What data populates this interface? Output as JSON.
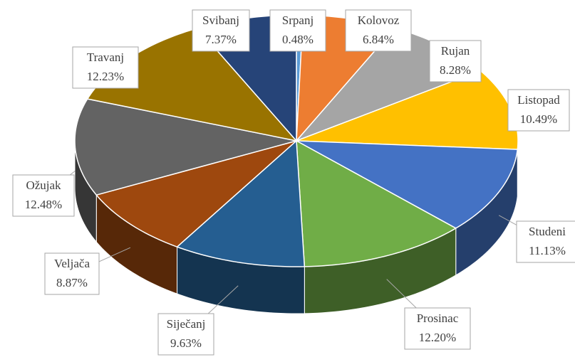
{
  "chart_data": {
    "type": "pie3d",
    "categories": [
      "Srpanj",
      "Kolovoz",
      "Rujan",
      "Listopad",
      "Studeni",
      "Prosinac",
      "Siječanj",
      "Veljača",
      "Ožujak",
      "Travanj",
      "Svibanj"
    ],
    "values": [
      0.48,
      6.84,
      8.28,
      10.49,
      11.13,
      12.2,
      9.63,
      8.87,
      12.48,
      12.23,
      7.37
    ],
    "value_labels": [
      "0.48%",
      "6.84%",
      "8.28%",
      "10.49%",
      "11.13%",
      "12.20%",
      "9.63%",
      "8.87%",
      "12.48%",
      "12.23%",
      "7.37%"
    ],
    "colors": [
      "#5b9bd5",
      "#ed7d31",
      "#a5a5a5",
      "#ffc000",
      "#4472c4",
      "#70ad47",
      "#255e91",
      "#9e480e",
      "#636363",
      "#997300",
      "#264478"
    ]
  }
}
